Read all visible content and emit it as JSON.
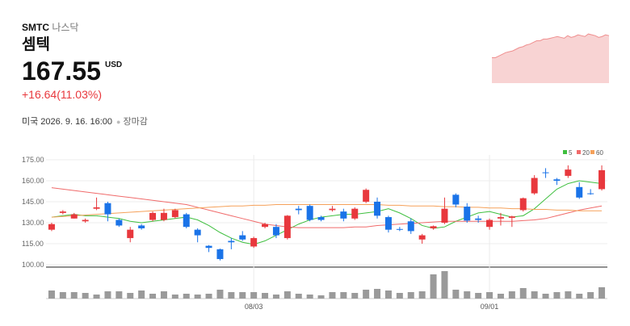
{
  "header": {
    "ticker": "SMTC",
    "exchange": "나스닥",
    "name": "셈텍",
    "price": "167.55",
    "currency": "USD",
    "change": "+16.64(11.03%)",
    "datetime": "미국 2026. 9. 16. 16:00",
    "status": "장마감"
  },
  "chart_data": [
    {
      "type": "area",
      "color": "#f4b6b6",
      "line_color": "#ef8f8f",
      "ylim": [
        0,
        60
      ],
      "values": [
        30,
        30,
        32,
        34,
        36,
        37,
        38,
        40,
        42,
        43,
        45,
        46,
        48,
        50,
        50,
        52,
        52,
        53,
        54,
        55,
        54,
        53,
        56,
        54,
        55,
        57,
        56,
        55,
        58,
        57,
        56,
        54,
        55,
        57,
        56
      ]
    },
    {
      "type": "candlestick",
      "up_color": "#e8383d",
      "down_color": "#1a73e8",
      "ylim": [
        100,
        175
      ],
      "yticks": [
        {
          "value": 100,
          "label": "100.00"
        },
        {
          "value": 115,
          "label": "115.00"
        },
        {
          "value": 130,
          "label": "130.00"
        },
        {
          "value": 145,
          "label": "145.00"
        },
        {
          "value": 160,
          "label": "160.00"
        },
        {
          "value": 175,
          "label": "175.00"
        }
      ],
      "grid": true,
      "categories": [
        null,
        null,
        null,
        null,
        null,
        null,
        null,
        null,
        null,
        null,
        null,
        null,
        null,
        null,
        null,
        null,
        null,
        null,
        "08/03",
        null,
        null,
        null,
        null,
        null,
        null,
        null,
        null,
        null,
        null,
        null,
        null,
        null,
        null,
        null,
        null,
        null,
        null,
        null,
        null,
        "09/01",
        null,
        null,
        null,
        null,
        null,
        null,
        null,
        null,
        null,
        null
      ],
      "open": [
        125,
        137,
        133,
        131,
        140,
        144,
        132,
        119,
        128,
        132,
        132,
        134,
        136,
        125,
        113.5,
        111,
        117,
        121,
        113,
        127,
        127,
        119,
        140,
        142,
        134,
        139,
        138,
        133,
        145,
        145,
        134,
        125.5,
        131,
        118,
        126,
        130,
        150,
        141.5,
        133,
        127,
        133,
        133.5,
        139,
        151,
        166,
        161,
        163.5,
        155.5,
        151,
        154
      ],
      "high": [
        130,
        139,
        137,
        133,
        148,
        145,
        133,
        127,
        129,
        138,
        140,
        140,
        137,
        126,
        114,
        111.5,
        119,
        124,
        120,
        130,
        129,
        135.5,
        142,
        143,
        135,
        142,
        140,
        141,
        154.5,
        148,
        135,
        127,
        133,
        122,
        128,
        148,
        151,
        144,
        135,
        133,
        137,
        135,
        148,
        164,
        169,
        162,
        171,
        159,
        154,
        171
      ],
      "low": [
        124,
        136,
        133,
        130,
        139,
        131,
        127,
        116,
        125,
        131,
        131,
        133,
        126,
        116,
        109,
        103,
        111,
        117,
        112,
        126,
        119,
        118,
        136,
        131,
        131,
        138,
        131,
        132,
        144,
        133,
        123,
        124,
        122,
        115,
        125,
        129,
        141,
        130,
        130,
        125,
        128,
        127,
        138,
        150,
        162,
        157,
        162,
        147,
        150,
        153
      ],
      "close": [
        129,
        138,
        136,
        132,
        141,
        136,
        128,
        125,
        126,
        137,
        137,
        139,
        127,
        121,
        112,
        104,
        116,
        118,
        119,
        129,
        121,
        135,
        139,
        132,
        132,
        140,
        133,
        140,
        153.5,
        135,
        125,
        125,
        124,
        121,
        127.5,
        140,
        143,
        131.5,
        132,
        132,
        134,
        134.5,
        147.5,
        162,
        165.5,
        160,
        168,
        148,
        150.91,
        167.55
      ],
      "volume": [
        10,
        8,
        8,
        7,
        5,
        9,
        9,
        7,
        10,
        6,
        9,
        5,
        6,
        5,
        6,
        11,
        8,
        8,
        8,
        7,
        5,
        9,
        6,
        5,
        4,
        8,
        8,
        7,
        11,
        12,
        10,
        7,
        8,
        9,
        30,
        34,
        11,
        9,
        7,
        8,
        6,
        9,
        13,
        9,
        6,
        8,
        9,
        6,
        8,
        14
      ],
      "volume_ylim": [
        0,
        35
      ],
      "series": [
        {
          "name": "5",
          "color": "#3fbf3f",
          "values": [
            134,
            135,
            136,
            135,
            135,
            134,
            133,
            131,
            130,
            131,
            132,
            133,
            134,
            132,
            128,
            123,
            119,
            116,
            114.5,
            117,
            121,
            125,
            129,
            132,
            134,
            135,
            136,
            136,
            137,
            138,
            140,
            137,
            133,
            128,
            126,
            127,
            131,
            134,
            137,
            138,
            136,
            134,
            135,
            140,
            147,
            154,
            158,
            160,
            159,
            158
          ]
        },
        {
          "name": "20",
          "color": "#f06b6b",
          "values": [
            155,
            154,
            153,
            152,
            151,
            150,
            149,
            148,
            147,
            146,
            145,
            144,
            143,
            141,
            139,
            137,
            135,
            133,
            131,
            129,
            128,
            127,
            126.5,
            126.5,
            126.5,
            126.5,
            126.5,
            127,
            127,
            128,
            128.5,
            129,
            129.5,
            130,
            130.5,
            131,
            131,
            131,
            131,
            131,
            131,
            131,
            131.5,
            132,
            133,
            135,
            137,
            139,
            140.5,
            142
          ]
        },
        {
          "name": "60",
          "color": "#f5a15a",
          "values": [
            134,
            134.5,
            135,
            135.5,
            136,
            136.5,
            137,
            137.5,
            138,
            138.5,
            139,
            139.5,
            140,
            140.5,
            141,
            141.5,
            142,
            142,
            142.5,
            142.5,
            143,
            143,
            143,
            143,
            143,
            143,
            143,
            143,
            143,
            143,
            142.5,
            142.5,
            142,
            142,
            142,
            141.5,
            141.5,
            141,
            141,
            140.5,
            140.5,
            140,
            140,
            139.5,
            139.5,
            139,
            139,
            138.5,
            138.5,
            138.5
          ]
        }
      ]
    }
  ]
}
